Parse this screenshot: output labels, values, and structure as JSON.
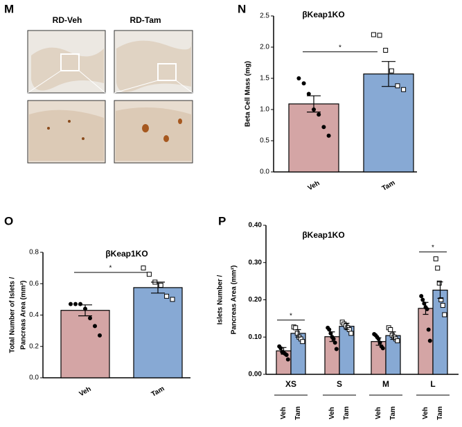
{
  "images": {
    "panel": "M",
    "labels": [
      "RD-Veh",
      "RD-Tam"
    ]
  },
  "chart_data": [
    {
      "type": "bar",
      "panel": "N",
      "title": "βKeap1KO",
      "ylabel": "Beta Cell Mass (mg)",
      "categories": [
        "Veh",
        "Tam"
      ],
      "values": [
        1.09,
        1.57
      ],
      "errors": [
        0.13,
        0.2
      ],
      "colors": [
        "#d4a5a5",
        "#87a9d4"
      ],
      "points": [
        [
          1.5,
          1.42,
          1.25,
          1.0,
          0.92,
          0.72,
          0.58
        ],
        [
          2.2,
          2.19,
          1.95,
          1.62,
          1.38,
          1.32
        ]
      ],
      "significance": "*",
      "ylim": [
        0,
        2.5
      ],
      "yticks": [
        {
          "value": 0,
          "label": "0.0"
        },
        0.5,
        {
          "value": 1,
          "label": "1.0"
        },
        1.5,
        {
          "value": 2,
          "label": "2.0"
        },
        2.5
      ]
    },
    {
      "type": "bar",
      "panel": "O",
      "title": "βKeap1KO",
      "ylabel": [
        "Total Number of Islets /",
        "Pancreas Area (mm²)"
      ],
      "categories": [
        "Veh",
        "Tam"
      ],
      "values": [
        0.43,
        0.575
      ],
      "errors": [
        0.035,
        0.035
      ],
      "colors": [
        "#d4a5a5",
        "#87a9d4"
      ],
      "points": [
        [
          0.47,
          0.47,
          0.47,
          0.44,
          0.38,
          0.33,
          0.27
        ],
        [
          0.7,
          0.66,
          0.61,
          0.59,
          0.52,
          0.5
        ]
      ],
      "significance": "*",
      "ylim": [
        0,
        0.8
      ],
      "yticks": [
        {
          "value": 0,
          "label": "0.0"
        },
        0.2,
        0.4,
        0.6,
        0.8
      ]
    },
    {
      "type": "bar",
      "panel": "P",
      "title": "βKeap1KO",
      "ylabel": [
        "Islets Number  /",
        "Pancreas Area (mm²)"
      ],
      "categories": [
        "XS",
        "S",
        "M",
        "L"
      ],
      "series": [
        {
          "name": "Veh",
          "color": "#d4a5a5",
          "values": [
            0.063,
            0.101,
            0.088,
            0.177
          ],
          "errors": [
            0.009,
            0.013,
            0.01,
            0.016
          ],
          "points": [
            [
              0.075,
              0.07,
              0.06,
              0.058,
              0.055,
              0.052,
              0.04
            ],
            [
              0.125,
              0.12,
              0.11,
              0.1,
              0.095,
              0.085,
              0.068
            ],
            [
              0.108,
              0.105,
              0.1,
              0.095,
              0.085,
              0.075,
              0.07
            ],
            [
              0.21,
              0.2,
              0.19,
              0.18,
              0.175,
              0.12,
              0.09
            ]
          ]
        },
        {
          "name": "Tam",
          "color": "#87a9d4",
          "values": [
            0.11,
            0.129,
            0.104,
            0.226
          ],
          "errors": [
            0.01,
            0.008,
            0.01,
            0.022
          ],
          "points": [
            [
              0.127,
              0.125,
              0.11,
              0.1,
              0.095,
              0.088
            ],
            [
              0.14,
              0.135,
              0.13,
              0.125,
              0.12,
              0.11
            ],
            [
              0.125,
              0.12,
              0.105,
              0.1,
              0.095,
              0.09
            ],
            [
              0.31,
              0.285,
              0.245,
              0.2,
              0.185,
              0.16
            ]
          ]
        }
      ],
      "significance": [
        "*",
        null,
        null,
        "*"
      ],
      "ylim": [
        0,
        0.4
      ],
      "yticks": [
        {
          "value": 0,
          "label": "0.00"
        },
        {
          "value": 0.1,
          "label": "0.10"
        },
        {
          "value": 0.2,
          "label": "0.20"
        },
        {
          "value": 0.3,
          "label": "0.30"
        },
        {
          "value": 0.4,
          "label": "0.40"
        }
      ]
    }
  ]
}
